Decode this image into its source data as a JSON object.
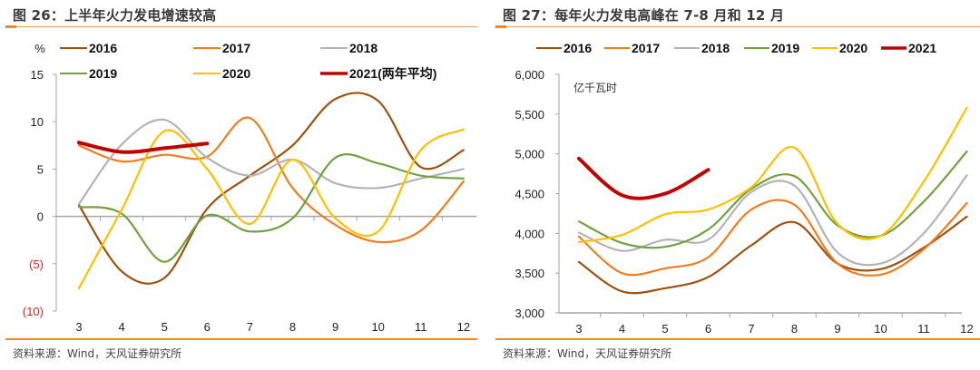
{
  "left": {
    "title": "图 26：上半年火力发电增速较高",
    "source": "资料来源：Wind，天风证券研究所"
  },
  "right": {
    "title": "图 27：每年火力发电高峰在 7-8 月和 12 月",
    "source": "资料来源：Wind，天风证券研究所"
  },
  "chart_data": [
    {
      "type": "line",
      "title": "图 26：上半年火力发电增速较高",
      "ylabel": "%",
      "xlabel": "",
      "ylim": [
        -10,
        15
      ],
      "yticks": [
        15,
        10,
        5,
        0,
        -5,
        -10
      ],
      "ytick_labels": [
        "15",
        "10",
        "5",
        "0",
        "(5)",
        "(10)"
      ],
      "x": [
        3,
        4,
        5,
        6,
        7,
        8,
        9,
        10,
        11,
        12
      ],
      "xtick_labels": [
        "3",
        "4",
        "5",
        "6",
        "7",
        "8",
        "9",
        "10",
        "11",
        "12"
      ],
      "legend_position": "top",
      "smooth": true,
      "series": [
        {
          "name": "2016",
          "color": "#9c5212",
          "values": [
            1.2,
            -5.8,
            -6.5,
            0.8,
            4.3,
            7.5,
            12.4,
            12.2,
            5.2,
            7.0
          ]
        },
        {
          "name": "2017",
          "color": "#ee7d22",
          "values": [
            7.5,
            5.8,
            6.5,
            6.3,
            10.4,
            3.0,
            -0.9,
            -2.7,
            -1.5,
            3.7
          ]
        },
        {
          "name": "2018",
          "color": "#b4b4b4",
          "values": [
            1.3,
            7.6,
            10.2,
            6.2,
            4.3,
            6.0,
            3.5,
            3.0,
            4.0,
            5.0
          ]
        },
        {
          "name": "2019",
          "color": "#73a040",
          "values": [
            1.0,
            0.3,
            -4.8,
            0.1,
            -1.6,
            -0.2,
            6.2,
            5.6,
            4.3,
            4.0
          ]
        },
        {
          "name": "2020",
          "color": "#ffc000",
          "values": [
            -7.6,
            0.7,
            9.0,
            5.0,
            -0.8,
            6.0,
            -0.2,
            -1.6,
            7.0,
            9.2
          ]
        },
        {
          "name": "2021(两年平均)",
          "color": "#c00000",
          "values": [
            7.8,
            6.8,
            7.2,
            7.7
          ]
        }
      ]
    },
    {
      "type": "line",
      "title": "图 27：每年火力发电高峰在 7-8 月和 12 月",
      "ylabel": "亿千瓦时",
      "xlabel": "",
      "ylim": [
        3000,
        6000
      ],
      "yticks": [
        6000,
        5500,
        5000,
        4500,
        4000,
        3500,
        3000
      ],
      "ytick_labels": [
        "6,000",
        "5,500",
        "5,000",
        "4,500",
        "4,000",
        "3,500",
        "3,000"
      ],
      "x": [
        3,
        4,
        5,
        6,
        7,
        8,
        9,
        10,
        11,
        12
      ],
      "xtick_labels": [
        "3",
        "4",
        "5",
        "6",
        "7",
        "8",
        "9",
        "10",
        "11",
        "12"
      ],
      "legend_position": "top",
      "smooth": true,
      "series": [
        {
          "name": "2016",
          "color": "#9c5212",
          "values": [
            3640,
            3270,
            3310,
            3450,
            3850,
            4140,
            3620,
            3550,
            3820,
            4210
          ]
        },
        {
          "name": "2017",
          "color": "#ee7d22",
          "values": [
            3960,
            3500,
            3560,
            3700,
            4300,
            4360,
            3620,
            3480,
            3800,
            4380
          ]
        },
        {
          "name": "2018",
          "color": "#b4b4b4",
          "values": [
            4010,
            3780,
            3920,
            3920,
            4520,
            4600,
            3760,
            3620,
            4000,
            4730
          ]
        },
        {
          "name": "2019",
          "color": "#73a040",
          "values": [
            4150,
            3880,
            3830,
            4050,
            4560,
            4720,
            4100,
            3970,
            4400,
            5030
          ]
        },
        {
          "name": "2020",
          "color": "#ffc000",
          "values": [
            3890,
            3980,
            4240,
            4300,
            4580,
            5080,
            4120,
            3970,
            4650,
            5580
          ]
        },
        {
          "name": "2021",
          "color": "#c00000",
          "values": [
            4940,
            4480,
            4500,
            4800
          ]
        }
      ]
    }
  ]
}
